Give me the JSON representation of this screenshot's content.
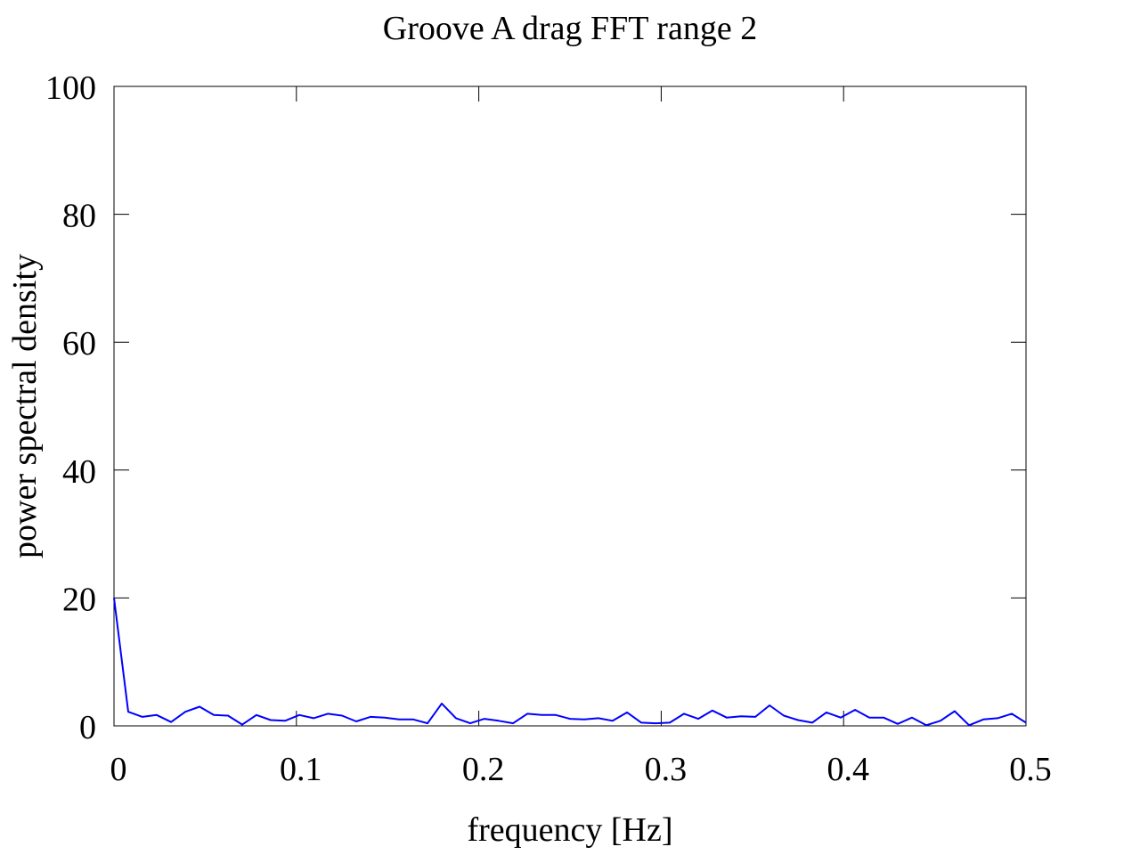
{
  "chart_data": {
    "type": "line",
    "title": "Groove A drag FFT range 2",
    "xlabel": "frequency [Hz]",
    "ylabel": "power spectral density",
    "xlim": [
      0,
      0.5
    ],
    "ylim": [
      0,
      100
    ],
    "xticks": [
      0,
      0.1,
      0.2,
      0.3,
      0.4,
      0.5
    ],
    "xtick_labels": [
      "0",
      "0.1",
      "0.2",
      "0.3",
      "0.4",
      "0.5"
    ],
    "yticks": [
      0,
      20,
      40,
      60,
      80,
      100
    ],
    "ytick_labels": [
      "0",
      "20",
      "40",
      "60",
      "80",
      "100"
    ],
    "grid": false,
    "legend": "none",
    "series": [
      {
        "color": "#0000ff",
        "x": [
          0,
          0.0078,
          0.0156,
          0.0234,
          0.0313,
          0.0391,
          0.0469,
          0.0547,
          0.0625,
          0.0703,
          0.0781,
          0.0859,
          0.0938,
          0.1016,
          0.1094,
          0.1172,
          0.125,
          0.1328,
          0.1406,
          0.1484,
          0.1563,
          0.1641,
          0.1719,
          0.1797,
          0.1875,
          0.1953,
          0.2031,
          0.2109,
          0.2188,
          0.2266,
          0.2344,
          0.2422,
          0.25,
          0.2578,
          0.2656,
          0.2734,
          0.2813,
          0.2891,
          0.2969,
          0.3047,
          0.3125,
          0.3203,
          0.3281,
          0.3359,
          0.3438,
          0.3516,
          0.3594,
          0.3672,
          0.375,
          0.3828,
          0.3906,
          0.3984,
          0.4063,
          0.4141,
          0.4219,
          0.4297,
          0.4375,
          0.4453,
          0.4531,
          0.4609,
          0.4688,
          0.4766,
          0.4844,
          0.4922,
          0.5
        ],
        "y": [
          20.0,
          2.2,
          1.4,
          1.7,
          0.6,
          2.2,
          3.0,
          1.7,
          1.6,
          0.2,
          1.7,
          0.9,
          0.8,
          1.7,
          1.2,
          1.9,
          1.6,
          0.7,
          1.4,
          1.3,
          1.0,
          1.0,
          0.4,
          3.5,
          1.2,
          0.4,
          1.1,
          0.8,
          0.4,
          1.9,
          1.7,
          1.7,
          1.1,
          1.0,
          1.2,
          0.8,
          2.1,
          0.5,
          0.4,
          0.5,
          1.9,
          1.1,
          2.4,
          1.3,
          1.5,
          1.4,
          3.2,
          1.6,
          0.9,
          0.5,
          2.1,
          1.3,
          2.5,
          1.3,
          1.3,
          0.3,
          1.3,
          0.1,
          0.8,
          2.3,
          0.1,
          1.0,
          1.2,
          1.9,
          0.5
        ]
      }
    ]
  }
}
